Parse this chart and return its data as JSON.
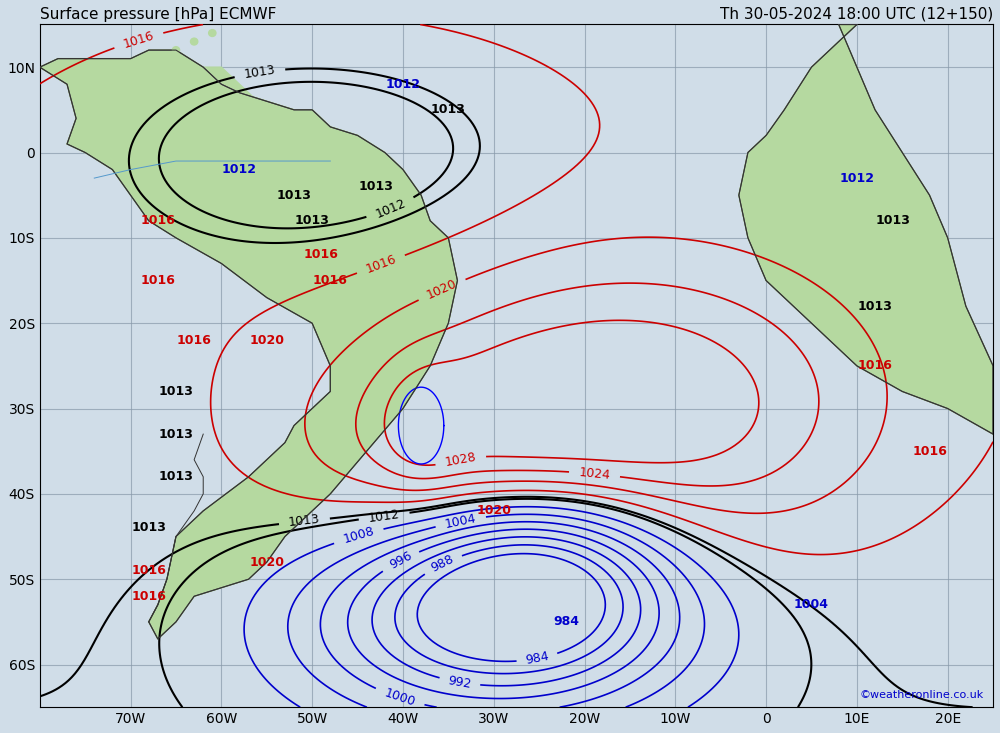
{
  "title": "Surface pressure [hPa] ECMWF",
  "datetime_label": "Th 30-05-2024 18:00 UTC (12+150)",
  "watermark": "©weatheronline.co.uk",
  "bg_land": "#b5d9a0",
  "bg_sea": "#d8e8f0",
  "bg_plot": "#d0dde8",
  "grid_color": "#aabbcc",
  "contour_color_high": "#cc0000",
  "contour_color_mid": "#000000",
  "contour_color_low": "#0000cc",
  "label_fontsize": 9,
  "axis_label_fontsize": 10,
  "title_fontsize": 11,
  "xlim": [
    -80,
    25
  ],
  "ylim": [
    -65,
    15
  ],
  "xticks": [
    -70,
    -60,
    -50,
    -40,
    -30,
    -20,
    -10,
    0,
    10,
    20
  ],
  "xtick_labels": [
    "70W",
    "60W",
    "50W",
    "40W",
    "30W",
    "20W",
    "10W",
    "0",
    "10E",
    "20E"
  ],
  "yticks": [
    -60,
    -50,
    -40,
    -30,
    -20,
    -10,
    0,
    10
  ],
  "ytick_labels": [
    "60S",
    "50S",
    "40S",
    "30S",
    "20S",
    "10S",
    "0",
    "10N"
  ],
  "pressure_levels_red": [
    1016,
    1020,
    1024,
    1028
  ],
  "pressure_levels_blue": [
    984,
    988,
    992,
    996,
    1000,
    1004,
    1008
  ],
  "pressure_levels_black": [
    1012,
    1013
  ]
}
